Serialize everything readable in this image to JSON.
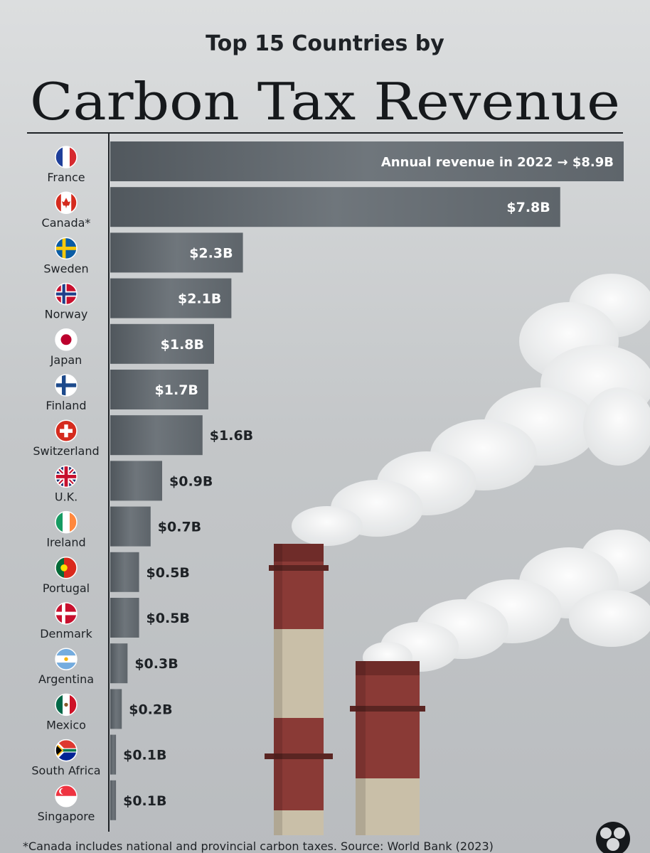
{
  "header": {
    "kicker": "Top 15 Countries by",
    "title": "Carbon Tax Revenue"
  },
  "footnote": "*Canada includes national and provincial carbon taxes. Source: World Bank (2023)",
  "colors": {
    "background": "#c9ccce",
    "bar": "#5f666c",
    "bar_dark": "#4f565c",
    "text_dark": "#1e2226",
    "text_light": "#ffffff",
    "chimney_red": "#8a3a36",
    "chimney_cream": "#c9bfa8"
  },
  "chart_data": {
    "type": "bar",
    "orientation": "horizontal",
    "categories": [
      "France",
      "Canada*",
      "Sweden",
      "Norway",
      "Japan",
      "Finland",
      "Switzerland",
      "U.K.",
      "Ireland",
      "Portugal",
      "Denmark",
      "Argentina",
      "Mexico",
      "South Africa",
      "Singapore"
    ],
    "values": [
      8.9,
      7.8,
      2.3,
      2.1,
      1.8,
      1.7,
      1.6,
      0.9,
      0.7,
      0.5,
      0.5,
      0.3,
      0.2,
      0.1,
      0.1
    ],
    "value_labels": [
      "Annual revenue in 2022 → $8.9B",
      "$7.8B",
      "$2.3B",
      "$2.1B",
      "$1.8B",
      "$1.7B",
      "$1.6B",
      "$0.9B",
      "$0.7B",
      "$0.5B",
      "$0.5B",
      "$0.3B",
      "$0.2B",
      "$0.1B",
      "$0.1B"
    ],
    "flags": [
      "france-flag-icon",
      "canada-flag-icon",
      "sweden-flag-icon",
      "norway-flag-icon",
      "japan-flag-icon",
      "finland-flag-icon",
      "switzerland-flag-icon",
      "uk-flag-icon",
      "ireland-flag-icon",
      "portugal-flag-icon",
      "denmark-flag-icon",
      "argentina-flag-icon",
      "mexico-flag-icon",
      "south-africa-flag-icon",
      "singapore-flag-icon"
    ],
    "xlim": [
      0,
      8.9
    ],
    "grid": false,
    "legend": "none"
  }
}
